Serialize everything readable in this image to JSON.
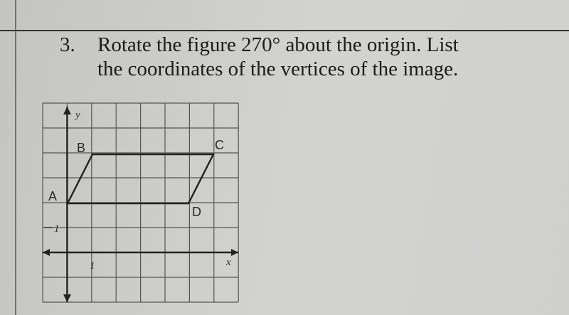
{
  "problem": {
    "number": "3.",
    "lines": [
      "Rotate the figure 270° about the origin. List",
      "the coordinates of the vertices of the image."
    ]
  },
  "figure": {
    "axis_labels": {
      "x": "x",
      "y": "y"
    },
    "tick_labels": {
      "x": "1",
      "y": "1"
    },
    "vertices": [
      "A",
      "B",
      "C",
      "D"
    ]
  }
}
